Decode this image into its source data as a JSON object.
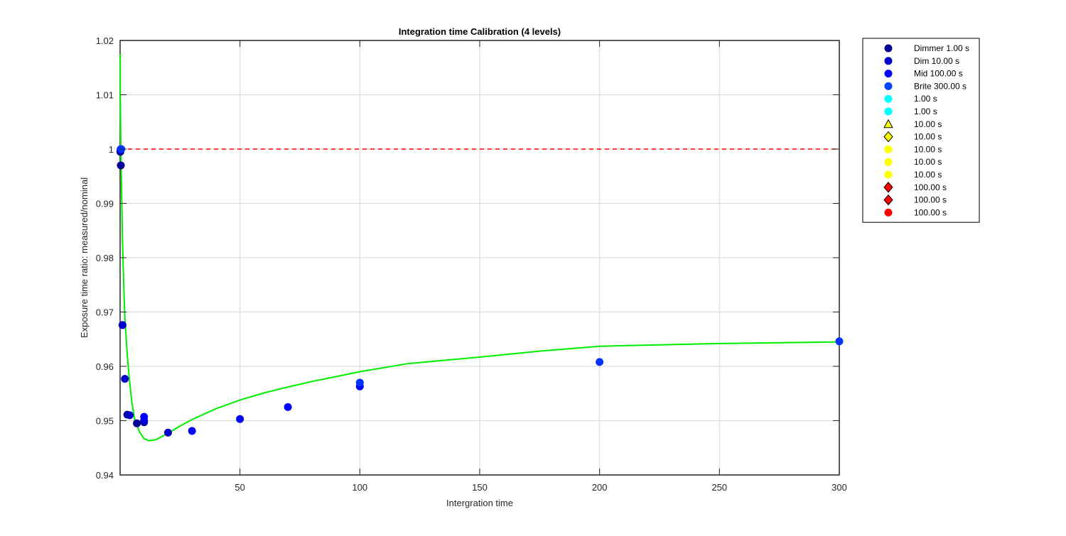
{
  "chart_data": {
    "type": "scatter",
    "title": "Integration time Calibration (4 levels)",
    "xlabel": "Intergration time",
    "ylabel": "Exposure time ratio: measured/nominal",
    "xlim": [
      0,
      300
    ],
    "ylim": [
      0.94,
      1.02
    ],
    "xticks": [
      50,
      100,
      150,
      200,
      250,
      300
    ],
    "xtick_labels": [
      "50",
      "100",
      "150",
      "200",
      "250",
      "300"
    ],
    "yticks": [
      0.94,
      0.95,
      0.96,
      0.97,
      0.98,
      0.99,
      1.0,
      1.01,
      1.02
    ],
    "ytick_labels": [
      "0.94",
      "0.95",
      "0.96",
      "0.97",
      "0.98",
      "0.99",
      "1",
      "1.01",
      "1.02"
    ],
    "grid": true,
    "legend_placement": "outside right",
    "reference_line": {
      "y": 1.0,
      "color": "#ff0000",
      "style": "dashed"
    },
    "fit_curve": {
      "color": "#00ee00",
      "x": [
        0.05,
        0.1,
        0.2,
        0.3,
        0.5,
        0.7,
        1,
        1.5,
        2,
        3,
        4,
        5,
        6,
        8,
        10,
        12,
        15,
        20,
        25,
        30,
        40,
        50,
        60,
        70,
        80,
        100,
        120,
        150,
        175,
        200,
        250,
        300
      ],
      "y": [
        1.0175,
        1.01,
        1.004,
        1.0,
        0.995,
        0.99,
        0.983,
        0.975,
        0.969,
        0.962,
        0.957,
        0.953,
        0.9505,
        0.948,
        0.9467,
        0.9463,
        0.9465,
        0.9477,
        0.949,
        0.9502,
        0.9522,
        0.9538,
        0.9551,
        0.9562,
        0.9572,
        0.959,
        0.9605,
        0.9617,
        0.9628,
        0.9637,
        0.9642,
        0.9645
      ]
    },
    "series": [
      {
        "name": "Dimmer 1.00 s",
        "color": "#000099",
        "marker": "circle",
        "x": [
          0.1,
          0.3,
          1,
          3,
          7,
          10
        ],
        "y": [
          0.9995,
          0.997,
          0.9676,
          0.9511,
          0.9495,
          0.9497
        ]
      },
      {
        "name": "Dim 10.00 s",
        "color": "#0000cc",
        "marker": "circle",
        "x": [
          0.2,
          1,
          2,
          4,
          10,
          20
        ],
        "y": [
          0.9999,
          0.9676,
          0.9577,
          0.951,
          0.95,
          0.9478
        ]
      },
      {
        "name": "Mid 100.00 s",
        "color": "#0000ff",
        "marker": "circle",
        "x": [
          0.3,
          10,
          30,
          50,
          70,
          100
        ],
        "y": [
          1.0,
          0.9507,
          0.9481,
          0.9503,
          0.9525,
          0.9563
        ]
      },
      {
        "name": "Brite 300.00 s",
        "color": "#0033ff",
        "marker": "circle",
        "x": [
          0.5,
          100,
          200,
          300
        ],
        "y": [
          1.0,
          0.957,
          0.9608,
          0.9646
        ]
      }
    ],
    "legend": [
      {
        "label": "Dimmer 1.00 s",
        "color": "#000099",
        "marker": "circle"
      },
      {
        "label": "Dim 10.00 s",
        "color": "#0000cc",
        "marker": "circle"
      },
      {
        "label": "Mid 100.00 s",
        "color": "#0000ff",
        "marker": "circle"
      },
      {
        "label": "Brite 300.00 s",
        "color": "#0044ff",
        "marker": "circle"
      },
      {
        "label": "1.00 s",
        "color": "#00ffff",
        "marker": "circle"
      },
      {
        "label": "1.00 s",
        "color": "#00ffff",
        "marker": "circle"
      },
      {
        "label": "10.00 s",
        "color": "#ffff00",
        "marker": "triangle"
      },
      {
        "label": "10.00 s",
        "color": "#ffff00",
        "marker": "diamond"
      },
      {
        "label": "10.00 s",
        "color": "#ffff00",
        "marker": "circle"
      },
      {
        "label": "10.00 s",
        "color": "#ffff00",
        "marker": "circle"
      },
      {
        "label": "10.00 s",
        "color": "#ffff00",
        "marker": "circle"
      },
      {
        "label": "100.00 s",
        "color": "#ff0000",
        "marker": "diamond"
      },
      {
        "label": "100.00 s",
        "color": "#ff0000",
        "marker": "diamond"
      },
      {
        "label": "100.00 s",
        "color": "#ff0000",
        "marker": "circle"
      }
    ]
  }
}
